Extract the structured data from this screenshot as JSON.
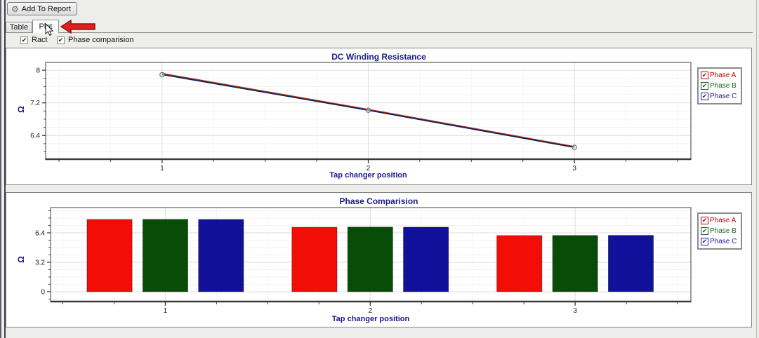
{
  "icons": {
    "gear": "⚙",
    "check": "✔"
  },
  "toolbar": {
    "add_to_report_label": "Add To Report"
  },
  "tabs": {
    "table": "Table",
    "plot": "Plot",
    "active": "Plot"
  },
  "options": {
    "ract": {
      "label": "Ract",
      "checked": true
    },
    "phase_comparison": {
      "label": "Phase comparision",
      "checked": true
    }
  },
  "legend": {
    "position": "right",
    "items": [
      {
        "label": "Phase A",
        "color": "#c00000",
        "checked": true
      },
      {
        "label": "Phase B",
        "color": "#1e641e",
        "checked": true
      },
      {
        "label": "Phase C",
        "color": "#1e1e96",
        "checked": true
      }
    ]
  },
  "colors": {
    "title": "#1b1b8a",
    "annotation_arrow": "#e02020",
    "grid_major": "#dedede",
    "grid_minor": "#f2f2f2",
    "axis": "#3a3a3a"
  },
  "chart_data": [
    {
      "type": "line",
      "title": "DC Winding Resistance",
      "xlabel": "Tap changer position",
      "ylabel": "Ω",
      "x": [
        1,
        2,
        3
      ],
      "series": [
        {
          "name": "Phase A",
          "color": "#c22020",
          "values": [
            7.91,
            7.03,
            6.12
          ]
        },
        {
          "name": "Phase B",
          "color": "#1a5c1a",
          "values": [
            7.9,
            7.02,
            6.11
          ]
        },
        {
          "name": "Phase C",
          "color": "#16166b",
          "values": [
            7.89,
            7.02,
            6.11
          ]
        }
      ],
      "xlim": [
        0.435,
        3.565
      ],
      "ylim": [
        5.82,
        8.19
      ],
      "yticks": [
        6.4,
        7.2,
        8
      ],
      "ytick_labels": [
        "6.4",
        "7.2",
        "8"
      ],
      "xticks": [
        1,
        2,
        3
      ],
      "xtick_labels": [
        "1",
        "2",
        "3"
      ],
      "y_minor_step": 0.2,
      "x_minor_step": 0.25,
      "grid": true,
      "markers": "circle",
      "legend_position": "right"
    },
    {
      "type": "bar",
      "title": "Phase Comparision",
      "xlabel": "Tap changer position",
      "ylabel": "Ω",
      "categories": [
        1,
        2,
        3
      ],
      "series": [
        {
          "name": "Phase A",
          "color": "#f20d06",
          "values": [
            7.85,
            7.0,
            6.1
          ]
        },
        {
          "name": "Phase B",
          "color": "#084c08",
          "values": [
            7.86,
            7.02,
            6.11
          ]
        },
        {
          "name": "Phase C",
          "color": "#10109b",
          "values": [
            7.85,
            7.01,
            6.12
          ]
        }
      ],
      "xlim": [
        0.44,
        3.565
      ],
      "ylim": [
        -1.07,
        9.14
      ],
      "yticks": [
        0,
        3.2,
        6.4
      ],
      "ytick_labels": [
        "0",
        "3.2",
        "6.4"
      ],
      "xticks": [
        1,
        2,
        3
      ],
      "xtick_labels": [
        "1",
        "2",
        "3"
      ],
      "y_minor_step": 0.8,
      "x_minor_step": 0.25,
      "bar_width": 0.22,
      "group_offsets": [
        -0.272,
        0,
        0.272
      ],
      "grid": true,
      "legend_position": "right"
    }
  ]
}
